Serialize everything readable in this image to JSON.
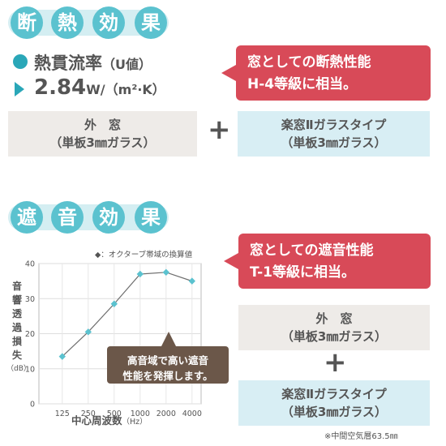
{
  "insulation": {
    "title_chars": [
      "断",
      "熱",
      "効",
      "果"
    ],
    "rate_label": "熱貫流率",
    "rate_paren": "（U値）",
    "rate_value": "2.84",
    "rate_unit": "W/（m²·K）",
    "callout_line1": "窓としての断熱性能",
    "callout_line2": "H-4等級に相当。",
    "box_outer_line1": "外　窓",
    "box_outer_line2": "（単板3㎜ガラス）",
    "plus": "+",
    "box_inner_line1": "楽窓Ⅱガラスタイプ",
    "box_inner_line2": "（単板3㎜ガラス）"
  },
  "sound": {
    "title_chars": [
      "遮",
      "音",
      "効",
      "果"
    ],
    "callout_line1": "窓としての遮音性能",
    "callout_line2": "T-1等級に相当。",
    "box_outer_line1": "外　窓",
    "box_outer_line2": "（単板3㎜ガラス）",
    "plus": "+",
    "box_inner_line1": "楽窓Ⅱガラスタイプ",
    "box_inner_line2": "（単板3㎜ガラス）",
    "footnote": "※中間空気層63.5㎜",
    "chart_callout_line1": "高音域で高い遮音",
    "chart_callout_line2": "性能を発揮します。"
  },
  "chart_data": {
    "type": "line",
    "legend": "◆：オクターブ帯域の換算値",
    "ylabel_chars": [
      "音",
      "響",
      "透",
      "過",
      "損",
      "失"
    ],
    "yunit": "（dB）",
    "xlabel": "中心周波数",
    "xunit": "（Hz）",
    "categories": [
      "125",
      "250",
      "500",
      "1000",
      "2000",
      "4000"
    ],
    "values": [
      13.5,
      20.5,
      28.5,
      37,
      37.5,
      35
    ],
    "ylim": [
      0,
      40
    ],
    "yticks": [
      "0",
      "10",
      "20",
      "30",
      "40"
    ],
    "colors": {
      "line": "#6e6e6e",
      "marker": "#5bc2cf"
    }
  }
}
